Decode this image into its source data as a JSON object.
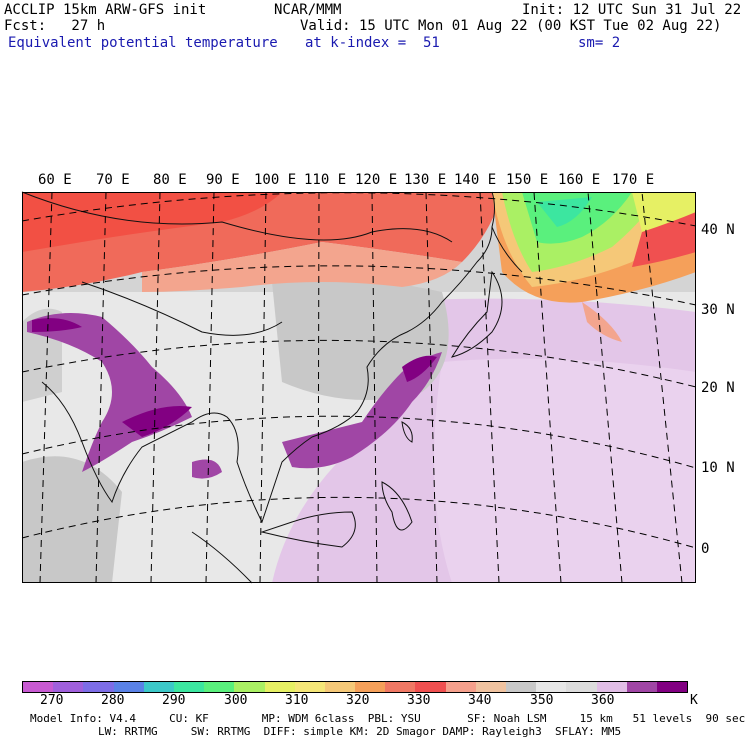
{
  "header": {
    "model": "ACCLIP 15km ARW-GFS init",
    "org": "NCAR/MMM",
    "init": "Init: 12 UTC Sun 31 Jul 22",
    "fcst": "Fcst:   27 h",
    "valid": "Valid: 15 UTC Mon 01 Aug 22 (00 KST Tue 02 Aug 22)",
    "field": "Equivalent potential temperature",
    "level": "at k-index =  51",
    "smooth": "sm= 2"
  },
  "map": {
    "lon_labels": [
      "60 E",
      "70 E",
      "80 E",
      "90 E",
      "100 E",
      "110 E",
      "120 E",
      "130 E",
      "140 E",
      "150 E",
      "160 E",
      "170 E"
    ],
    "lat_labels": [
      "40 N",
      "30 N",
      "20 N",
      "10 N",
      "0"
    ]
  },
  "colorbar": {
    "colors": [
      "#c85ad2",
      "#a060dc",
      "#7d6de6",
      "#5a82e6",
      "#3cc8c8",
      "#3ce6a0",
      "#5af07d",
      "#aaf064",
      "#e6f064",
      "#f5e678",
      "#f5c878",
      "#f5a05a",
      "#f07864",
      "#f05050",
      "#f5a08c",
      "#f0c3a0",
      "#c8c8c8",
      "#e6e6e6",
      "#dcdcdc",
      "#e1bee6",
      "#a046a5",
      "#820082"
    ],
    "ticks": [
      "270",
      "280",
      "290",
      "300",
      "310",
      "320",
      "330",
      "340",
      "350",
      "360"
    ],
    "unit": "K"
  },
  "model_info": {
    "line1": "Model Info: V4.4     CU: KF        MP: WDM 6class  PBL: YSU       SF: Noah LSM     15 km   51 levels  90 sec",
    "line2": "LW: RRTMG     SW: RRTMG  DIFF: simple KM: 2D Smagor DAMP: Rayleigh3  SFLAY: MM5"
  }
}
